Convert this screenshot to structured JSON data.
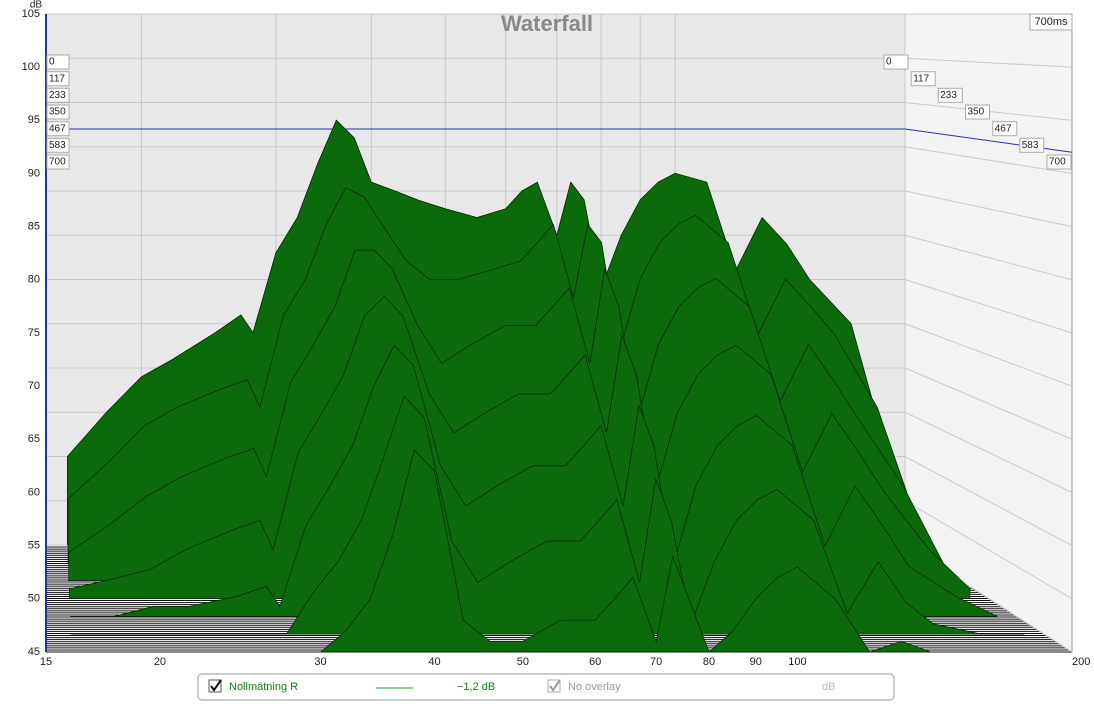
{
  "chart_data": {
    "type": "waterfall",
    "title": "Waterfall",
    "y_label": "dB",
    "time_label": "700ms",
    "log_x": true,
    "grid": true,
    "color": "#0b6b0b",
    "xlim": [
      15,
      200
    ],
    "xticks": [
      15,
      20,
      30,
      40,
      50,
      60,
      70,
      80,
      90,
      100,
      {
        "value": 200,
        "label": "200 Hz"
      }
    ],
    "ylim": [
      45,
      105
    ],
    "yticks": [
      45,
      50,
      55,
      60,
      65,
      70,
      75,
      80,
      85,
      90,
      95,
      100,
      105
    ],
    "tlim": [
      0,
      700
    ],
    "reference_level": 92,
    "x": [
      16,
      18,
      20,
      22,
      25,
      27,
      28,
      30,
      32,
      34,
      36,
      38,
      40,
      43,
      46,
      50,
      55,
      60,
      63,
      66,
      70,
      73,
      76,
      80,
      85,
      90,
      95,
      100,
      110,
      120,
      130,
      140,
      150,
      170,
      190
    ],
    "slices": [
      {
        "time": 0,
        "values": [
          55,
          60,
          64,
          66,
          69,
          71,
          69,
          78,
          82,
          88,
          93,
          91,
          86,
          85,
          84,
          83,
          82,
          83,
          85,
          86,
          80,
          86,
          84,
          74,
          80,
          84,
          86,
          87,
          86,
          76,
          82,
          79,
          75,
          70,
          55
        ]
      },
      {
        "time": 117,
        "values": [
          52,
          56,
          60,
          62,
          64,
          65,
          62,
          72,
          76,
          82,
          86,
          85,
          82,
          78,
          76,
          76,
          77,
          78,
          80,
          82,
          74,
          82,
          80,
          68,
          76,
          80,
          82,
          83,
          80,
          70,
          76,
          73,
          70,
          62,
          50
        ]
      },
      {
        "time": 233,
        "values": [
          48,
          51,
          54,
          56,
          58,
          59,
          56,
          66,
          70,
          74,
          80,
          80,
          78,
          72,
          68,
          70,
          72,
          72,
          74,
          76,
          68,
          78,
          74,
          62,
          70,
          74,
          76,
          77,
          74,
          64,
          70,
          66,
          62,
          55,
          47
        ]
      },
      {
        "time": 350,
        "values": [
          46,
          47,
          48,
          50,
          52,
          53,
          50,
          60,
          64,
          68,
          74,
          76,
          74,
          66,
          62,
          64,
          66,
          66,
          68,
          70,
          62,
          72,
          68,
          56,
          64,
          68,
          70,
          71,
          68,
          58,
          64,
          60,
          56,
          50,
          46
        ]
      },
      {
        "time": 467,
        "values": [
          45,
          45,
          46,
          46,
          47,
          48,
          46,
          54,
          58,
          62,
          68,
          72,
          70,
          60,
          56,
          58,
          60,
          60,
          62,
          64,
          56,
          66,
          62,
          50,
          58,
          62,
          64,
          65,
          62,
          52,
          58,
          54,
          50,
          47,
          45
        ]
      },
      {
        "time": 583,
        "values": [
          45,
          45,
          45,
          45,
          45,
          45,
          45,
          49,
          52,
          56,
          62,
          68,
          66,
          54,
          50,
          52,
          54,
          54,
          56,
          58,
          50,
          60,
          56,
          46,
          52,
          56,
          58,
          59,
          56,
          47,
          52,
          48,
          46,
          45,
          45
        ]
      },
      {
        "time": 700,
        "values": [
          45,
          45,
          45,
          45,
          45,
          45,
          45,
          45,
          47,
          50,
          56,
          64,
          62,
          48,
          46,
          46,
          48,
          48,
          50,
          52,
          46,
          54,
          50,
          45,
          47,
          50,
          52,
          53,
          50,
          45,
          46,
          45,
          45,
          45,
          45
        ]
      }
    ]
  },
  "legend": {
    "series_name": "Nollmätning R",
    "offset": "−1,2 dB",
    "overlay": "No overlay",
    "unit": "dB"
  }
}
